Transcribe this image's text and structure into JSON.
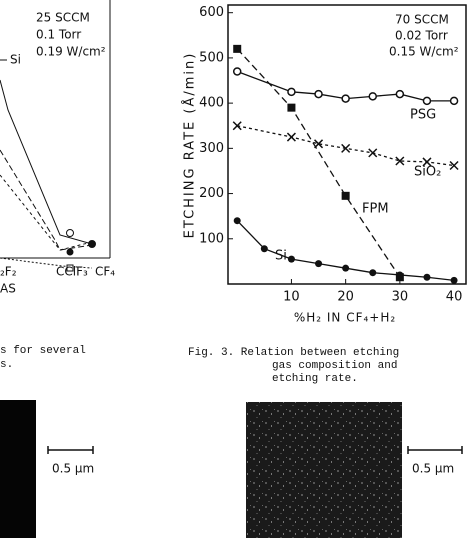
{
  "left_chart": {
    "conditions": [
      "25 SCCM",
      "0.1 Torr",
      "0.19 W/cm²"
    ],
    "series_label": "Si",
    "categories": [
      "₂F₂",
      "CClF₃",
      "CF₄"
    ],
    "x_label": "AS",
    "caption": [
      "s for several",
      "s."
    ]
  },
  "chart_data": {
    "type": "line",
    "y_label": "ETCHING RATE (Å/min)",
    "x_label": "%H₂ IN CF₄+H₂",
    "conditions": [
      "70 SCCM",
      "0.02 Torr",
      "0.15 W/cm²"
    ],
    "xlim": [
      -1.7,
      42.2
    ],
    "ylim": [
      0,
      617
    ],
    "xticks": [
      10,
      20,
      30,
      40
    ],
    "yticks": [
      100,
      200,
      300,
      400,
      500,
      600
    ],
    "grid": false,
    "series": [
      {
        "name": "PSG",
        "color": "#111",
        "line_style": "solid",
        "marker": "open-circle",
        "x": [
          0,
          10,
          15,
          20,
          25,
          30,
          35,
          40
        ],
        "values": [
          470,
          425,
          420,
          410,
          415,
          420,
          405,
          405
        ]
      },
      {
        "name": "SiO₂",
        "color": "#111",
        "line_style": "dotted",
        "marker": "x",
        "x": [
          0,
          10,
          15,
          20,
          25,
          30,
          35,
          40
        ],
        "values": [
          350,
          325,
          310,
          300,
          290,
          272,
          270,
          262
        ]
      },
      {
        "name": "FPM",
        "color": "#111",
        "line_style": "dashed",
        "marker": "square",
        "x": [
          0,
          10,
          20,
          30
        ],
        "values": [
          520,
          390,
          195,
          15
        ]
      },
      {
        "name": "Si",
        "color": "#111",
        "line_style": "solid",
        "marker": "filled-circle",
        "x": [
          0,
          5,
          10,
          15,
          20,
          25,
          30,
          35,
          40
        ],
        "values": [
          140,
          78,
          55,
          45,
          35,
          25,
          20,
          15,
          8
        ]
      }
    ]
  },
  "caption": [
    "Fig. 3.   Relation between etching",
    "gas composition  and",
    "etching rate."
  ],
  "micrographs": {
    "left_scale": "0.5 μm",
    "right_scale": "0.5 μm"
  }
}
